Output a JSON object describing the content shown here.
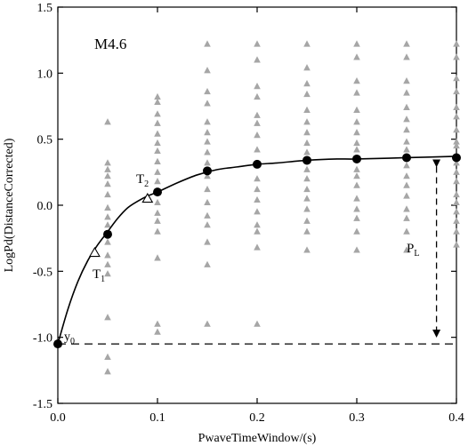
{
  "chart_data": {
    "type": "scatter",
    "title": "",
    "xlabel": "PwaveTimeWindow/(s)",
    "ylabel": "LogPd(DistanceCorrected)",
    "xlim": [
      0.0,
      0.4
    ],
    "ylim": [
      -1.5,
      1.5
    ],
    "xticks": [
      0.0,
      0.1,
      0.2,
      0.3,
      0.4
    ],
    "yticks": [
      -1.5,
      -1.0,
      -0.5,
      0.0,
      0.5,
      1.0,
      1.5
    ],
    "xtick_labels": [
      "0.0",
      "0.1",
      "0.2",
      "0.3",
      "0.4"
    ],
    "ytick_labels": [
      "-1.5",
      "-1.0",
      "-0.5",
      "0.0",
      "0.5",
      "1.0",
      "1.5"
    ],
    "grid": false,
    "colors": {
      "scatter": "#a6a6a6",
      "mean": "#000000",
      "curve": "#000000"
    },
    "series": [
      {
        "marker": "gray-triangle",
        "points": [
          [
            0.05,
            0.63
          ],
          [
            0.05,
            0.32
          ],
          [
            0.05,
            0.27
          ],
          [
            0.05,
            0.22
          ],
          [
            0.05,
            0.16
          ],
          [
            0.05,
            0.08
          ],
          [
            0.05,
            -0.02
          ],
          [
            0.05,
            -0.09
          ],
          [
            0.05,
            -0.15
          ],
          [
            0.05,
            -0.28
          ],
          [
            0.05,
            -0.38
          ],
          [
            0.05,
            -0.45
          ],
          [
            0.05,
            -0.52
          ],
          [
            0.05,
            -0.85
          ],
          [
            0.05,
            -1.15
          ],
          [
            0.05,
            -1.26
          ],
          [
            0.1,
            0.82
          ],
          [
            0.1,
            0.78
          ],
          [
            0.1,
            0.69
          ],
          [
            0.1,
            0.62
          ],
          [
            0.1,
            0.54
          ],
          [
            0.1,
            0.47
          ],
          [
            0.1,
            0.41
          ],
          [
            0.1,
            0.33
          ],
          [
            0.1,
            0.25
          ],
          [
            0.1,
            0.18
          ],
          [
            0.1,
            0.02
          ],
          [
            0.1,
            -0.06
          ],
          [
            0.1,
            -0.12
          ],
          [
            0.1,
            -0.2
          ],
          [
            0.1,
            -0.4
          ],
          [
            0.1,
            -0.9
          ],
          [
            0.1,
            -0.96
          ],
          [
            0.15,
            1.22
          ],
          [
            0.15,
            1.02
          ],
          [
            0.15,
            0.86
          ],
          [
            0.15,
            0.77
          ],
          [
            0.15,
            0.63
          ],
          [
            0.15,
            0.55
          ],
          [
            0.15,
            0.48
          ],
          [
            0.15,
            0.4
          ],
          [
            0.15,
            0.32
          ],
          [
            0.15,
            0.22
          ],
          [
            0.15,
            0.12
          ],
          [
            0.15,
            0.02
          ],
          [
            0.15,
            -0.08
          ],
          [
            0.15,
            -0.15
          ],
          [
            0.15,
            -0.28
          ],
          [
            0.15,
            -0.45
          ],
          [
            0.15,
            -0.9
          ],
          [
            0.2,
            1.22
          ],
          [
            0.2,
            1.1
          ],
          [
            0.2,
            0.9
          ],
          [
            0.2,
            0.82
          ],
          [
            0.2,
            0.68
          ],
          [
            0.2,
            0.62
          ],
          [
            0.2,
            0.53
          ],
          [
            0.2,
            0.42
          ],
          [
            0.2,
            0.2
          ],
          [
            0.2,
            0.12
          ],
          [
            0.2,
            0.04
          ],
          [
            0.2,
            -0.05
          ],
          [
            0.2,
            -0.15
          ],
          [
            0.2,
            -0.2
          ],
          [
            0.2,
            -0.32
          ],
          [
            0.2,
            -0.9
          ],
          [
            0.25,
            1.22
          ],
          [
            0.25,
            1.04
          ],
          [
            0.25,
            0.92
          ],
          [
            0.25,
            0.84
          ],
          [
            0.25,
            0.72
          ],
          [
            0.25,
            0.63
          ],
          [
            0.25,
            0.55
          ],
          [
            0.25,
            0.47
          ],
          [
            0.25,
            0.4
          ],
          [
            0.25,
            0.27
          ],
          [
            0.25,
            0.2
          ],
          [
            0.25,
            0.12
          ],
          [
            0.25,
            0.05
          ],
          [
            0.25,
            -0.03
          ],
          [
            0.25,
            -0.12
          ],
          [
            0.25,
            -0.2
          ],
          [
            0.25,
            -0.34
          ],
          [
            0.3,
            1.22
          ],
          [
            0.3,
            1.12
          ],
          [
            0.3,
            0.94
          ],
          [
            0.3,
            0.85
          ],
          [
            0.3,
            0.72
          ],
          [
            0.3,
            0.63
          ],
          [
            0.3,
            0.55
          ],
          [
            0.3,
            0.47
          ],
          [
            0.3,
            0.42
          ],
          [
            0.3,
            0.27
          ],
          [
            0.3,
            0.22
          ],
          [
            0.3,
            0.15
          ],
          [
            0.3,
            0.05
          ],
          [
            0.3,
            -0.03
          ],
          [
            0.3,
            -0.1
          ],
          [
            0.3,
            -0.2
          ],
          [
            0.3,
            -0.34
          ],
          [
            0.35,
            1.22
          ],
          [
            0.35,
            1.12
          ],
          [
            0.35,
            0.94
          ],
          [
            0.35,
            0.85
          ],
          [
            0.35,
            0.74
          ],
          [
            0.35,
            0.65
          ],
          [
            0.35,
            0.57
          ],
          [
            0.35,
            0.48
          ],
          [
            0.35,
            0.42
          ],
          [
            0.35,
            0.3
          ],
          [
            0.35,
            0.22
          ],
          [
            0.35,
            0.15
          ],
          [
            0.35,
            0.07
          ],
          [
            0.35,
            -0.03
          ],
          [
            0.35,
            -0.1
          ],
          [
            0.35,
            -0.2
          ],
          [
            0.35,
            -0.34
          ],
          [
            0.4,
            1.22
          ],
          [
            0.4,
            1.12
          ],
          [
            0.4,
            0.96
          ],
          [
            0.4,
            0.86
          ],
          [
            0.4,
            0.74
          ],
          [
            0.4,
            0.67
          ],
          [
            0.4,
            0.57
          ],
          [
            0.4,
            0.48
          ],
          [
            0.4,
            0.45
          ],
          [
            0.4,
            0.32
          ],
          [
            0.4,
            0.25
          ],
          [
            0.4,
            0.18
          ],
          [
            0.4,
            0.08
          ],
          [
            0.4,
            0.02
          ],
          [
            0.4,
            -0.05
          ],
          [
            0.4,
            -0.12
          ],
          [
            0.4,
            -0.2
          ],
          [
            0.4,
            -0.3
          ]
        ]
      },
      {
        "marker": "black-circle",
        "points": [
          [
            0.0,
            -1.05
          ],
          [
            0.05,
            -0.22
          ],
          [
            0.1,
            0.1
          ],
          [
            0.15,
            0.26
          ],
          [
            0.2,
            0.31
          ],
          [
            0.25,
            0.34
          ],
          [
            0.3,
            0.35
          ],
          [
            0.35,
            0.36
          ],
          [
            0.4,
            0.36
          ]
        ]
      },
      {
        "marker": "open-triangle",
        "points": [
          [
            0.037,
            -0.36
          ],
          [
            0.09,
            0.05
          ]
        ]
      },
      {
        "marker": "curve",
        "points": [
          [
            0.0,
            -1.05
          ],
          [
            0.01,
            -0.79
          ],
          [
            0.02,
            -0.58
          ],
          [
            0.03,
            -0.42
          ],
          [
            0.04,
            -0.3
          ],
          [
            0.05,
            -0.2
          ],
          [
            0.06,
            -0.1
          ],
          [
            0.07,
            -0.02
          ],
          [
            0.08,
            0.03
          ],
          [
            0.09,
            0.07
          ],
          [
            0.1,
            0.1
          ],
          [
            0.12,
            0.17
          ],
          [
            0.14,
            0.23
          ],
          [
            0.16,
            0.27
          ],
          [
            0.18,
            0.29
          ],
          [
            0.2,
            0.31
          ],
          [
            0.22,
            0.32
          ],
          [
            0.25,
            0.34
          ],
          [
            0.28,
            0.35
          ],
          [
            0.3,
            0.35
          ],
          [
            0.35,
            0.36
          ],
          [
            0.4,
            0.37
          ]
        ]
      }
    ],
    "reference_line": {
      "y": -1.05,
      "style": "dashed"
    },
    "annotations": {
      "label": "M4.6",
      "y0": {
        "text": "y",
        "sub": "0"
      },
      "t1": {
        "text": "T",
        "sub": "1"
      },
      "t2": {
        "text": "T",
        "sub": "2"
      },
      "pl": {
        "text": "P",
        "sub": "L",
        "from_y": 0.36,
        "to_y": -1.05,
        "x": 0.38
      }
    }
  }
}
